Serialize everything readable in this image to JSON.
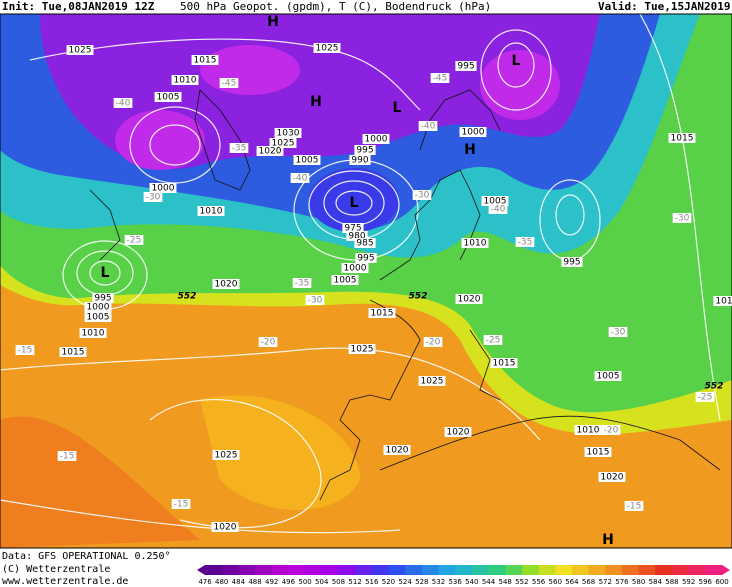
{
  "header": {
    "init": "Init: Tue,08JAN2019 12Z",
    "title": "500 hPa Geopot. (gpdm), T (C), Bodendruck (hPa)",
    "valid": "Valid: Tue,15JAN2019 06Z"
  },
  "map": {
    "isobar_labels": [
      1025,
      1015,
      1010,
      1005,
      1025,
      995,
      1030,
      1025,
      1020,
      1000,
      995,
      990,
      1005,
      1000,
      1000,
      1010,
      1005,
      1010,
      995,
      975,
      980,
      985,
      995,
      1000,
      1005,
      1020,
      995,
      1000,
      1005,
      1010,
      1015,
      1015,
      1020,
      1025,
      1025,
      1015,
      1005,
      1015,
      1020,
      1020,
      1025,
      1010,
      1015,
      1020,
      1020,
      101
    ],
    "temperature_labels": [
      -40,
      -45,
      -45,
      -35,
      -40,
      -40,
      -30,
      -35,
      -30,
      -25,
      -30,
      -40,
      -35,
      -30,
      -25,
      -20,
      -20,
      -15,
      -15,
      -15,
      -15,
      -25,
      -20,
      -30
    ],
    "height_labels": [
      552,
      552,
      552
    ],
    "pressure_centers": [
      "H",
      "H",
      "L",
      "L",
      "H",
      "L",
      "L",
      "H"
    ]
  },
  "colorbar": {
    "labels": [
      476,
      480,
      484,
      488,
      492,
      496,
      500,
      504,
      508,
      512,
      516,
      520,
      524,
      528,
      532,
      536,
      540,
      544,
      548,
      552,
      556,
      560,
      564,
      568,
      572,
      576,
      580,
      584,
      588,
      592,
      596,
      600
    ]
  },
  "footer": {
    "data": "Data: GFS OPERATIONAL 0.250°",
    "copyright": "(C) Wetterzentrale",
    "url": "www.wetterzentrale.de"
  }
}
